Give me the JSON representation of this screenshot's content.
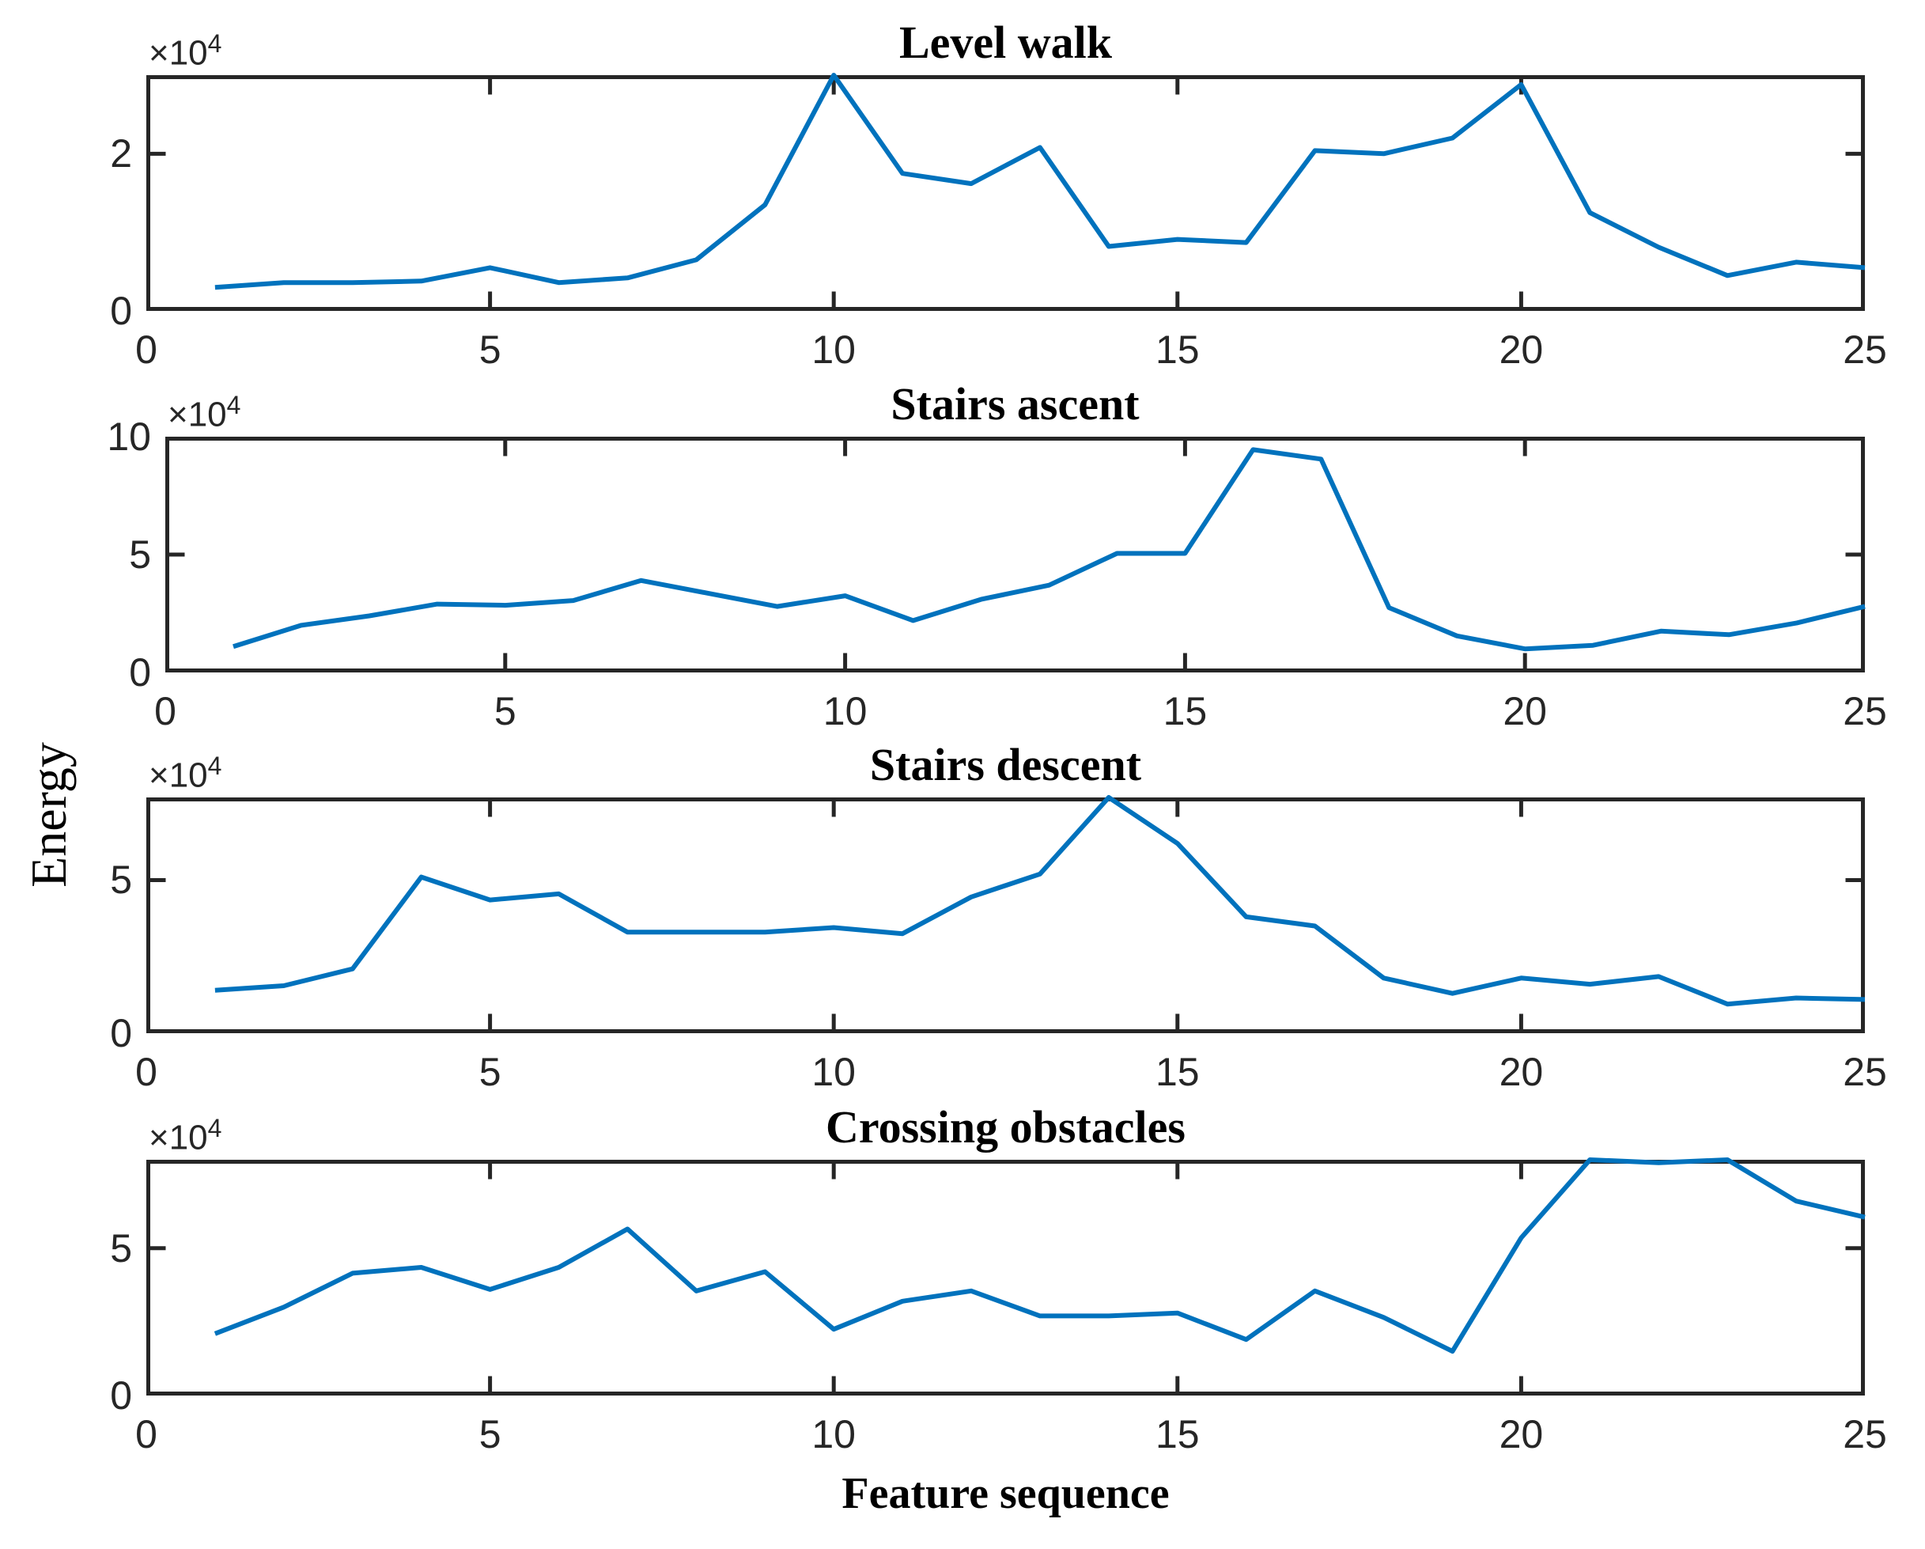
{
  "figure": {
    "ylabel": "Energy",
    "xlabel": "Feature sequence",
    "exponent_mantissa": "×10",
    "exponent_power": "4",
    "line_color": "#0072BD",
    "axes_color": "#262626"
  },
  "chart_data": [
    {
      "type": "line",
      "title": "Level walk",
      "xlabel": "",
      "ylabel": "",
      "y_unit_multiplier": 10000,
      "xlim": [
        0,
        25
      ],
      "ylim": [
        0,
        3.0
      ],
      "xticks": [
        0,
        5,
        10,
        15,
        20,
        25
      ],
      "yticks": [
        0,
        2
      ],
      "grid": false,
      "x": [
        1,
        2,
        3,
        4,
        5,
        6,
        7,
        8,
        9,
        10,
        11,
        12,
        13,
        14,
        15,
        16,
        17,
        18,
        19,
        20,
        21,
        22,
        23,
        24,
        25
      ],
      "values": [
        0.3,
        0.36,
        0.36,
        0.38,
        0.55,
        0.36,
        0.42,
        0.65,
        1.35,
        3.0,
        1.75,
        1.62,
        2.08,
        0.82,
        0.91,
        0.87,
        2.04,
        2.0,
        2.2,
        2.88,
        1.25,
        0.81,
        0.45,
        0.62,
        0.55
      ]
    },
    {
      "type": "line",
      "title": "Stairs ascent",
      "xlabel": "",
      "ylabel": "",
      "y_unit_multiplier": 10000,
      "xlim": [
        0,
        25
      ],
      "ylim": [
        0,
        10
      ],
      "xticks": [
        0,
        5,
        10,
        15,
        20,
        25
      ],
      "yticks": [
        0,
        5,
        10
      ],
      "grid": false,
      "x": [
        1,
        2,
        3,
        4,
        5,
        6,
        7,
        8,
        9,
        10,
        11,
        12,
        13,
        14,
        15,
        16,
        17,
        18,
        19,
        20,
        21,
        22,
        23,
        24,
        25
      ],
      "values": [
        1.1,
        2.0,
        2.4,
        2.9,
        2.85,
        3.05,
        3.9,
        3.35,
        2.8,
        3.25,
        2.2,
        3.1,
        3.7,
        5.05,
        5.05,
        9.45,
        9.05,
        2.75,
        1.55,
        1.0,
        1.15,
        1.75,
        1.6,
        2.1,
        2.8
      ]
    },
    {
      "type": "line",
      "title": "Stairs descent",
      "xlabel": "",
      "ylabel": "",
      "y_unit_multiplier": 10000,
      "xlim": [
        0,
        25
      ],
      "ylim": [
        0,
        7.7
      ],
      "xticks": [
        0,
        5,
        10,
        15,
        20,
        25
      ],
      "yticks": [
        0,
        5
      ],
      "grid": false,
      "x": [
        1,
        2,
        3,
        4,
        5,
        6,
        7,
        8,
        9,
        10,
        11,
        12,
        13,
        14,
        15,
        16,
        17,
        18,
        19,
        20,
        21,
        22,
        23,
        24,
        25
      ],
      "values": [
        1.4,
        1.55,
        2.1,
        5.1,
        4.35,
        4.55,
        3.3,
        3.3,
        3.3,
        3.45,
        3.25,
        4.45,
        5.2,
        7.7,
        6.2,
        3.8,
        3.5,
        1.8,
        1.3,
        1.8,
        1.6,
        1.85,
        0.95,
        1.15,
        1.1
      ]
    },
    {
      "type": "line",
      "title": "Crossing obstacles",
      "xlabel": "",
      "ylabel": "",
      "y_unit_multiplier": 10000,
      "xlim": [
        0,
        25
      ],
      "ylim": [
        0,
        8.0
      ],
      "xticks": [
        0,
        5,
        10,
        15,
        20,
        25
      ],
      "yticks": [
        0,
        5
      ],
      "grid": false,
      "x": [
        1,
        2,
        3,
        4,
        5,
        6,
        7,
        8,
        9,
        10,
        11,
        12,
        13,
        14,
        15,
        16,
        17,
        18,
        19,
        20,
        21,
        22,
        23,
        24,
        25
      ],
      "values": [
        2.1,
        3.0,
        4.15,
        4.35,
        3.6,
        4.35,
        5.65,
        3.55,
        4.2,
        2.25,
        3.2,
        3.55,
        2.7,
        2.7,
        2.8,
        1.9,
        3.55,
        2.65,
        1.5,
        5.35,
        8.0,
        7.9,
        8.0,
        6.6,
        6.05
      ]
    }
  ]
}
